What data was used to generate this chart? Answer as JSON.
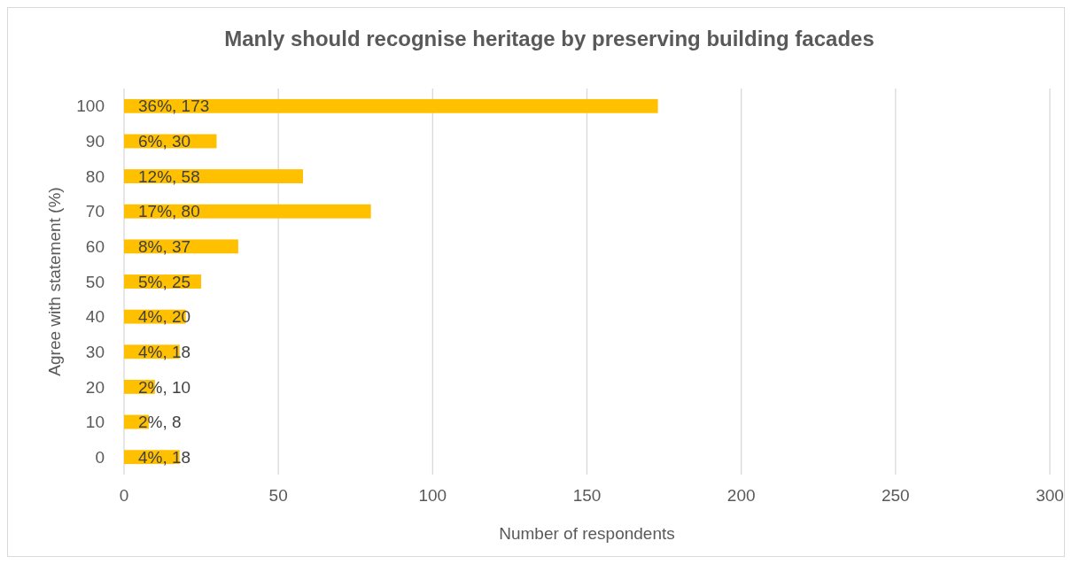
{
  "chart_data": {
    "type": "bar",
    "orientation": "horizontal",
    "title": "Manly should recognise heritage by preserving building facades",
    "xlabel": "Number of respondents",
    "ylabel": "Agree with statement (%)",
    "categories": [
      "100",
      "90",
      "80",
      "70",
      "60",
      "50",
      "40",
      "30",
      "20",
      "10",
      "0"
    ],
    "values": [
      173,
      30,
      58,
      80,
      37,
      25,
      20,
      18,
      10,
      8,
      18
    ],
    "value_labels": [
      "36%, 173",
      "6%, 30",
      "12%, 58",
      "17%, 80",
      "8%, 37",
      "5%, 25",
      "4%, 20",
      "4%, 18",
      "2%, 10",
      "2%, 8",
      "4%, 18"
    ],
    "color": "#ffc000",
    "xlim": [
      0,
      300
    ],
    "xticks": [
      0,
      50,
      100,
      150,
      200,
      250,
      300
    ],
    "grid": "x"
  }
}
